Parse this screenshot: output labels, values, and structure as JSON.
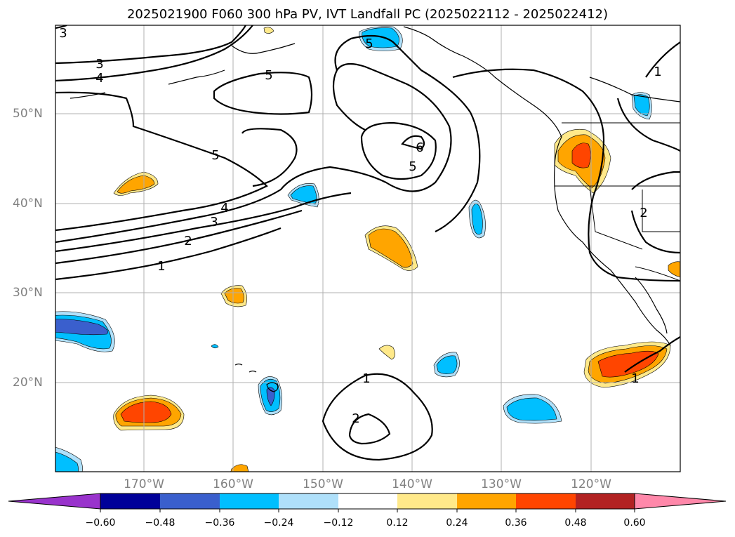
{
  "title": "2025021900 F060 300 hPa PV, IVT Landfall PC (2025022112 - 2025022412)",
  "lat_labels": [
    "50°N",
    "40°N",
    "30°N",
    "20°N"
  ],
  "lon_labels": [
    "170°W",
    "160°W",
    "150°W",
    "140°W",
    "130°W",
    "120°W"
  ],
  "contour_labels": [
    "3",
    "3",
    "4",
    "5",
    "5",
    "4",
    "3",
    "2",
    "1",
    "6",
    "5",
    "5",
    "1",
    "2",
    "1",
    "2",
    "1"
  ],
  "colorbar": {
    "ticks": [
      "−0.60",
      "−0.48",
      "−0.36",
      "−0.24",
      "−0.12",
      "0.12",
      "0.24",
      "0.36",
      "0.48",
      "0.60"
    ],
    "colors": [
      "#9933cc",
      "#000099",
      "#3a5fcd",
      "#00bfff",
      "#afe0fa",
      "#ffffff",
      "#ffe98a",
      "#ffa500",
      "#ff4500",
      "#b22222",
      "#ff88aa"
    ]
  }
}
